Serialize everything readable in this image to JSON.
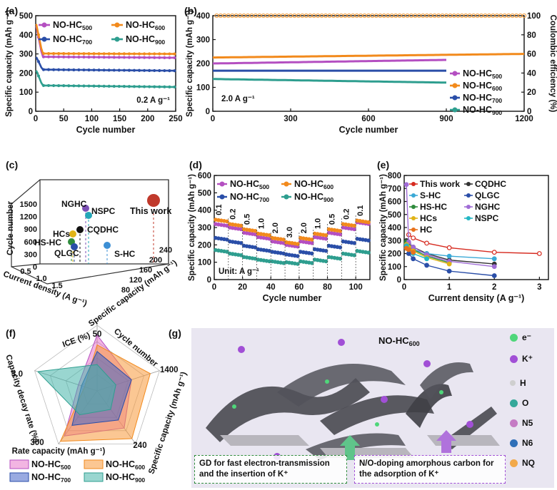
{
  "colors": {
    "c500": "#b44fc1",
    "c600": "#f28a1c",
    "c700": "#2a4ea8",
    "c900": "#2e9e8f",
    "ce": "#f59e3c",
    "red": "#d62a1f"
  },
  "chart_data": [
    {
      "panel": "a",
      "type": "line",
      "xlabel": "Cycle number",
      "ylabel": "Specific capacity (mAh g⁻¹)",
      "xlim": [
        0,
        250
      ],
      "ylim": [
        0,
        500
      ],
      "xticks": [
        0,
        50,
        100,
        150,
        200,
        250
      ],
      "yticks": [
        0,
        100,
        200,
        300,
        400,
        500
      ],
      "annotation": "0.2 A g⁻¹",
      "series": [
        {
          "name": "NO-HC500",
          "start": 460,
          "plateau": 285,
          "end": 280
        },
        {
          "name": "NO-HC600",
          "start": 470,
          "plateau": 302,
          "end": 300
        },
        {
          "name": "NO-HC700",
          "start": 290,
          "plateau": 218,
          "end": 212
        },
        {
          "name": "NO-HC900",
          "start": 220,
          "plateau": 135,
          "end": 127
        }
      ]
    },
    {
      "panel": "b",
      "type": "line",
      "xlabel": "Cycle number",
      "ylabel": "Specific capacity (mAh g⁻¹)",
      "y2label": "Coulombic efficiency (%)",
      "xlim": [
        0,
        1200
      ],
      "ylim": [
        0,
        400
      ],
      "y2lim": [
        0,
        100
      ],
      "xticks": [
        0,
        300,
        600,
        900,
        1200
      ],
      "yticks": [
        0,
        100,
        200,
        300,
        400
      ],
      "y2ticks": [
        0,
        20,
        40,
        60,
        80,
        100
      ],
      "annotation": "2.0 A g⁻¹",
      "series": [
        {
          "name": "NO-HC500",
          "start": 200,
          "end": 215,
          "last_cycle": 900
        },
        {
          "name": "NO-HC600",
          "start": 225,
          "end": 240,
          "last_cycle": 1200
        },
        {
          "name": "NO-HC700",
          "start": 170,
          "end": 170,
          "last_cycle": 900
        },
        {
          "name": "NO-HC900",
          "start": 135,
          "end": 120,
          "last_cycle": 900
        }
      ],
      "coulombic_efficiency": 100
    },
    {
      "panel": "c",
      "type": "scatter",
      "xlabel": "Current density (A g⁻¹)",
      "ylabel": "Cycle number",
      "zlabel": "Specific capacity (mAh g⁻¹)",
      "xticks": [
        "0.5",
        "1.0",
        "1.5"
      ],
      "yticks": [
        "0",
        "300",
        "600",
        "900",
        "1200",
        "1500"
      ],
      "zticks": [
        "80",
        "120",
        "160",
        "200",
        "240"
      ],
      "points": [
        "This work",
        "NGHC",
        "NSPC",
        "CQDHC",
        "HCs",
        "HS-HC",
        "QLGC",
        "S-HC"
      ]
    },
    {
      "panel": "d",
      "type": "line",
      "xlabel": "Cycle number",
      "ylabel": "Specific capacity (mAh g⁻¹)",
      "xlim": [
        0,
        110
      ],
      "ylim": [
        0,
        600
      ],
      "xticks": [
        0,
        20,
        40,
        60,
        80,
        100
      ],
      "yticks": [
        0,
        100,
        200,
        300,
        400,
        500,
        600
      ],
      "rates": [
        "0.1",
        "0.2",
        "0.5",
        "1.0",
        "2.0",
        "3.0",
        "2.0",
        "1.0",
        "0.5",
        "0.2",
        "0.1"
      ],
      "unit": "Unit: A g⁻¹",
      "series": [
        {
          "name": "NO-HC500",
          "values": [
            320,
            300,
            270,
            245,
            220,
            200,
            220,
            245,
            270,
            300,
            330
          ]
        },
        {
          "name": "NO-HC600",
          "values": [
            345,
            320,
            290,
            265,
            240,
            215,
            240,
            265,
            290,
            320,
            340
          ]
        },
        {
          "name": "NO-HC700",
          "values": [
            240,
            220,
            195,
            175,
            160,
            145,
            160,
            175,
            195,
            220,
            235
          ]
        },
        {
          "name": "NO-HC900",
          "values": [
            170,
            150,
            130,
            115,
            105,
            100,
            105,
            115,
            130,
            150,
            165
          ]
        }
      ]
    },
    {
      "panel": "e",
      "type": "line",
      "xlabel": "Current density (A g⁻¹)",
      "ylabel": "Specific capacity (mAh g⁻¹)",
      "xlim": [
        0,
        3.2
      ],
      "ylim": [
        0,
        800
      ],
      "xticks": [
        0.0,
        1.0,
        2.0,
        3.0
      ],
      "yticks": [
        0,
        100,
        200,
        300,
        400,
        500,
        600,
        700,
        800
      ],
      "series": [
        {
          "name": "This work",
          "x": [
            0.1,
            0.2,
            0.5,
            1.0,
            2.0,
            3.0
          ],
          "values": [
            345,
            320,
            280,
            245,
            210,
            200
          ]
        },
        {
          "name": "CQDHC",
          "x": [
            0.05,
            0.1,
            0.2,
            0.5,
            1.0,
            2.0
          ],
          "values": [
            300,
            280,
            250,
            200,
            150,
            120
          ]
        },
        {
          "name": "S-HC",
          "x": [
            0.05,
            0.1,
            0.2,
            0.5,
            1.0,
            2.0
          ],
          "values": [
            280,
            255,
            230,
            200,
            180,
            160
          ]
        },
        {
          "name": "QLGC",
          "x": [
            0.05,
            0.1,
            0.2,
            0.5,
            1.0,
            2.0
          ],
          "values": [
            250,
            200,
            160,
            110,
            65,
            30
          ]
        },
        {
          "name": "HS-HC",
          "x": [
            0.05,
            0.1,
            0.2,
            0.5,
            1.0
          ],
          "values": [
            290,
            260,
            230,
            180,
            130
          ]
        },
        {
          "name": "NGHC",
          "x": [
            0.05,
            0.1,
            0.2,
            0.5,
            1.0,
            2.0
          ],
          "values": [
            730,
            290,
            250,
            190,
            140,
            100
          ]
        },
        {
          "name": "HCs",
          "x": [
            0.05,
            0.1,
            0.2,
            0.5,
            1.0
          ],
          "values": [
            270,
            250,
            220,
            170,
            120
          ]
        },
        {
          "name": "NSPC",
          "x": [
            0.05,
            0.1,
            0.2,
            0.5
          ],
          "values": [
            260,
            230,
            200,
            160
          ]
        },
        {
          "name": "HC",
          "x": [
            0.05,
            0.1,
            0.2
          ],
          "values": [
            240,
            230,
            210
          ]
        }
      ]
    },
    {
      "panel": "f",
      "type": "radar",
      "axes": [
        "ICE (%)",
        "Cycle number",
        "Specific capacity (mAh g⁻¹)",
        "Rate capacity (mAh g⁻¹)",
        "Capacity decay rate (%)"
      ],
      "axis_max_labels": [
        "50",
        "1400",
        "240",
        "300",
        "3.0"
      ],
      "series": [
        {
          "name": "NO-HC500",
          "values": [
            0.85,
            0.55,
            0.7,
            0.85,
            0.3
          ]
        },
        {
          "name": "NO-HC600",
          "values": [
            0.7,
            0.85,
            0.9,
            0.95,
            0.2
          ]
        },
        {
          "name": "NO-HC700",
          "values": [
            0.6,
            0.55,
            0.55,
            0.65,
            0.25
          ]
        },
        {
          "name": "NO-HC900",
          "values": [
            0.4,
            0.3,
            0.35,
            0.45,
            0.95
          ]
        }
      ]
    }
  ],
  "labels": {
    "panel_a": "(a)",
    "panel_b": "(b)",
    "panel_c": "(c)",
    "panel_d": "(d)",
    "panel_e": "(e)",
    "panel_f": "(f)",
    "panel_g": "(g)",
    "g_title_main": "NO-HC",
    "g_title_sub": "600",
    "g_left_box": "GD  for  fast  electron-transmission and the insertion of K⁺",
    "g_right_box": "N/O-doping amorphous carbon for the adsorption of K⁺",
    "legend_e": "e⁻",
    "legend_k": "K⁺",
    "legend_h": "H",
    "legend_o": "O",
    "legend_n5": "N5",
    "legend_n6": "N6",
    "legend_nq": "NQ",
    "hc_prefix": "NO-HC",
    "hc500": "500",
    "hc600": "600",
    "hc700": "700",
    "hc900": "900"
  }
}
